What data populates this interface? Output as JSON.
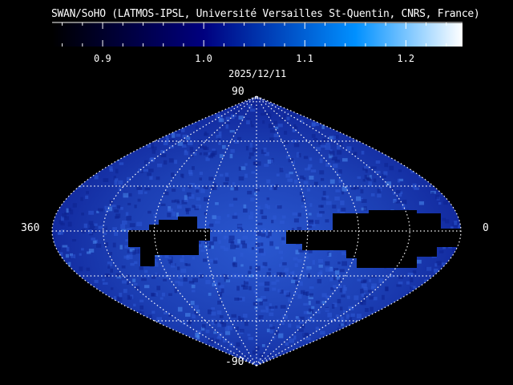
{
  "title": "SWAN/SoHO (LATMOS-IPSL, Université Versailles St-Quentin, CNRS, France)",
  "date": "2025/12/11",
  "colorbar": {
    "min": 0.85,
    "max": 1.256,
    "ticks": [
      "0.9",
      "1.0",
      "1.1",
      "1.2"
    ],
    "tick_values": [
      0.9,
      1.0,
      1.1,
      1.2
    ],
    "stops": [
      {
        "value": 0.85,
        "color": "#000000"
      },
      {
        "value": 1.0,
        "color": "#00007f"
      },
      {
        "value": 1.15,
        "color": "#0090ff"
      },
      {
        "value": 1.256,
        "color": "#ffffff"
      }
    ]
  },
  "map": {
    "projection": "sinusoidal",
    "lat_top_label": "90",
    "lat_bottom_label": "-90",
    "lon_left_label": "360",
    "lon_right_label": "0",
    "lat_grid_step_deg": 30,
    "lon_grid_step_deg": 45,
    "fill_color": "#1c3fb4",
    "grid_color": "#ffffff"
  }
}
